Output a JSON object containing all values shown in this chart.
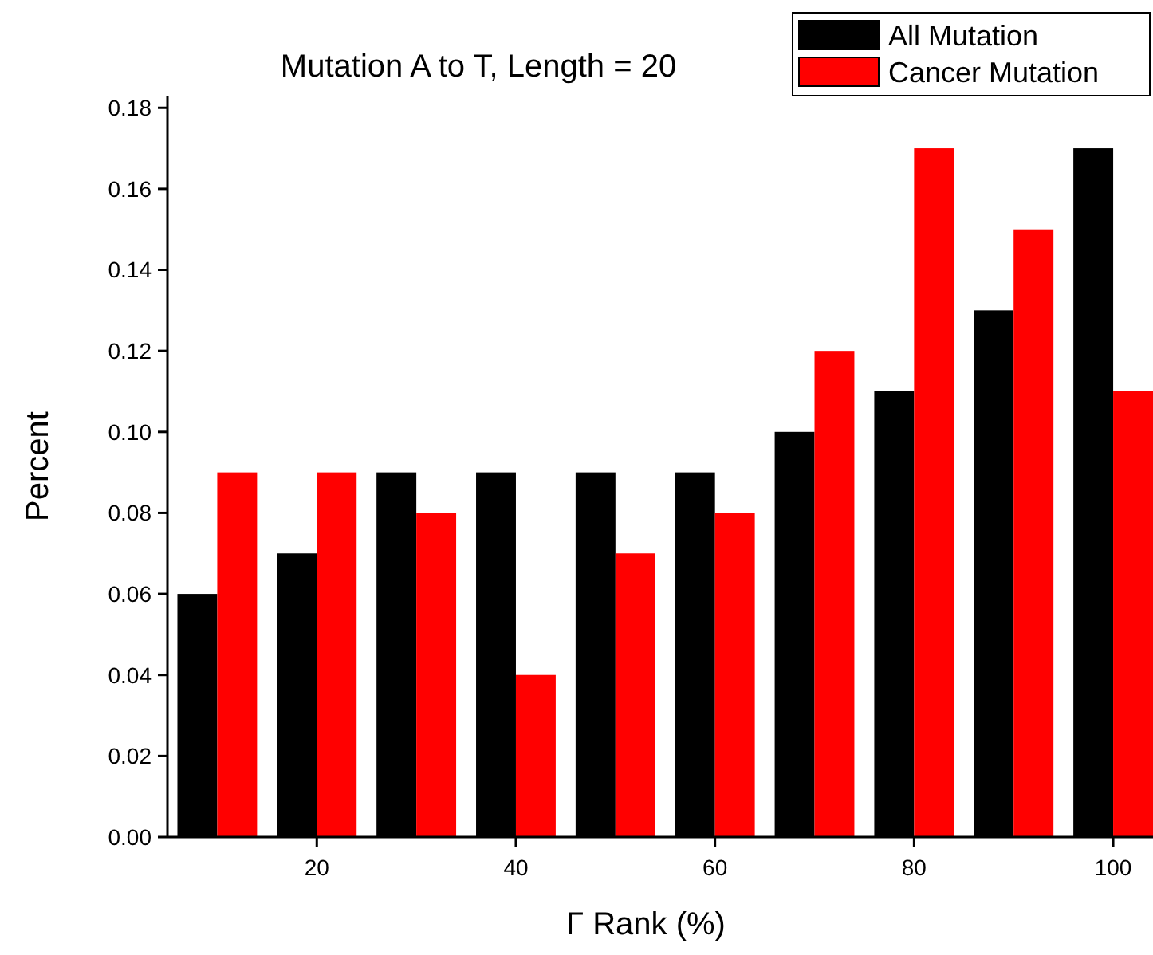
{
  "chart_data": {
    "type": "bar",
    "title": "Mutation A to T, Length = 20",
    "xlabel": "Γ Rank (%)",
    "ylabel": "Percent",
    "x": [
      10,
      20,
      30,
      40,
      50,
      60,
      70,
      80,
      90,
      100
    ],
    "series": [
      {
        "name": "All Mutation",
        "color": "#000000",
        "values": [
          0.06,
          0.07,
          0.09,
          0.09,
          0.09,
          0.09,
          0.1,
          0.11,
          0.13,
          0.17
        ]
      },
      {
        "name": "Cancer Mutation",
        "color": "#ff0000",
        "values": [
          0.09,
          0.09,
          0.08,
          0.04,
          0.07,
          0.08,
          0.12,
          0.17,
          0.15,
          0.11
        ]
      }
    ],
    "xlim": [
      5,
      104
    ],
    "xticks": [
      20,
      40,
      60,
      80,
      100
    ],
    "ylim": [
      0,
      0.183
    ],
    "yticks": [
      {
        "value": 0,
        "label": "0.00"
      },
      {
        "value": 0.02,
        "label": "0.02"
      },
      {
        "value": 0.04,
        "label": "0.04"
      },
      {
        "value": 0.06,
        "label": "0.06"
      },
      {
        "value": 0.08,
        "label": "0.08"
      },
      {
        "value": 0.1,
        "label": "0.10"
      },
      {
        "value": 0.12,
        "label": "0.12"
      },
      {
        "value": 0.14,
        "label": "0.14"
      },
      {
        "value": 0.16,
        "label": "0.16"
      },
      {
        "value": 0.18,
        "label": "0.18"
      }
    ],
    "legend": "top right",
    "grid": false
  }
}
